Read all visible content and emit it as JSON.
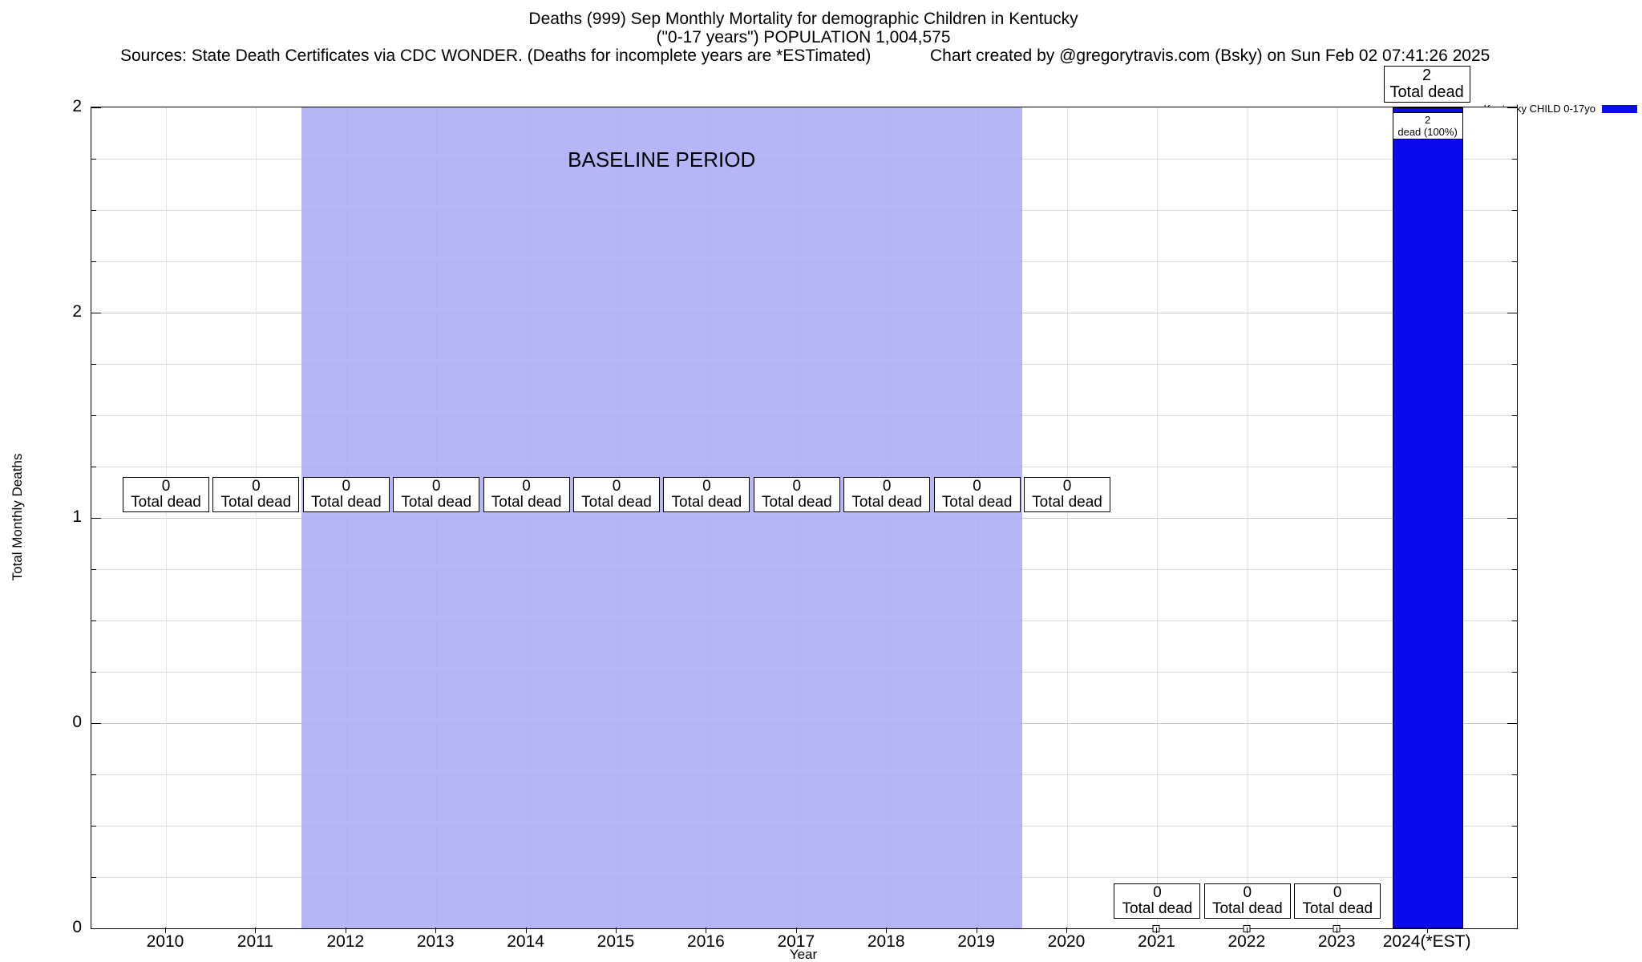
{
  "header": {
    "title_line1": "Deaths (999) Sep Monthly Mortality for demographic Children in Kentucky",
    "title_line2": "(\"0-17 years\") POPULATION 1,004,575",
    "sources": "Sources: State Death Certificates via CDC WONDER. (Deaths for incomplete years are *ESTimated)",
    "credit": "Chart created by @gregorytravis.com (Bsky) on Sun Feb 02 07:41:26 2025"
  },
  "legend": {
    "label": "Kentucky CHILD 0-17yo",
    "swatch_color": "#0b0bee"
  },
  "axes": {
    "ylabel": "Total Monthly Deaths",
    "xlabel": "Year",
    "ytick_labels_bottom_to_top": [
      "0",
      "0",
      "1",
      "2",
      "2"
    ]
  },
  "chart_data": {
    "type": "bar",
    "title": "Deaths (999) Sep Monthly Mortality for demographic Children in Kentucky (\"0-17 years\") POPULATION 1,004,575",
    "xlabel": "Year",
    "ylabel": "Total Monthly Deaths",
    "ylim": [
      0,
      2
    ],
    "grid": "on",
    "legend_position": "top-right-outside",
    "categories": [
      "2010",
      "2011",
      "2012",
      "2013",
      "2014",
      "2015",
      "2016",
      "2017",
      "2018",
      "2019",
      "2020",
      "2021",
      "2022",
      "2023",
      "2024(*EST)"
    ],
    "series": [
      {
        "name": "Kentucky CHILD 0-17yo",
        "values": [
          0,
          0,
          0,
          0,
          0,
          0,
          0,
          0,
          0,
          0,
          0,
          0,
          0,
          0,
          2
        ]
      }
    ],
    "colors": {
      "bar": "#0b0bee",
      "baseline_fill": "#a9a9f5"
    },
    "annotations": {
      "baseline_label": "BASELINE PERIOD",
      "baseline_span_categories": [
        "2012",
        "2019"
      ],
      "zero_boxes": {
        "value": "0",
        "text": "Total dead",
        "mid_row_categories": [
          "2010",
          "2011",
          "2012",
          "2013",
          "2014",
          "2015",
          "2016",
          "2017",
          "2018",
          "2019",
          "2020"
        ],
        "bottom_row_categories": [
          "2021",
          "2022",
          "2023"
        ]
      },
      "zero_marker_categories": [
        "2021",
        "2022",
        "2023"
      ],
      "bar_top_box": {
        "value": "2",
        "text": "Total dead",
        "category": "2024(*EST)"
      },
      "bar_inner_box": {
        "value": "2",
        "text": "dead (100%)",
        "category": "2024(*EST)"
      }
    }
  }
}
